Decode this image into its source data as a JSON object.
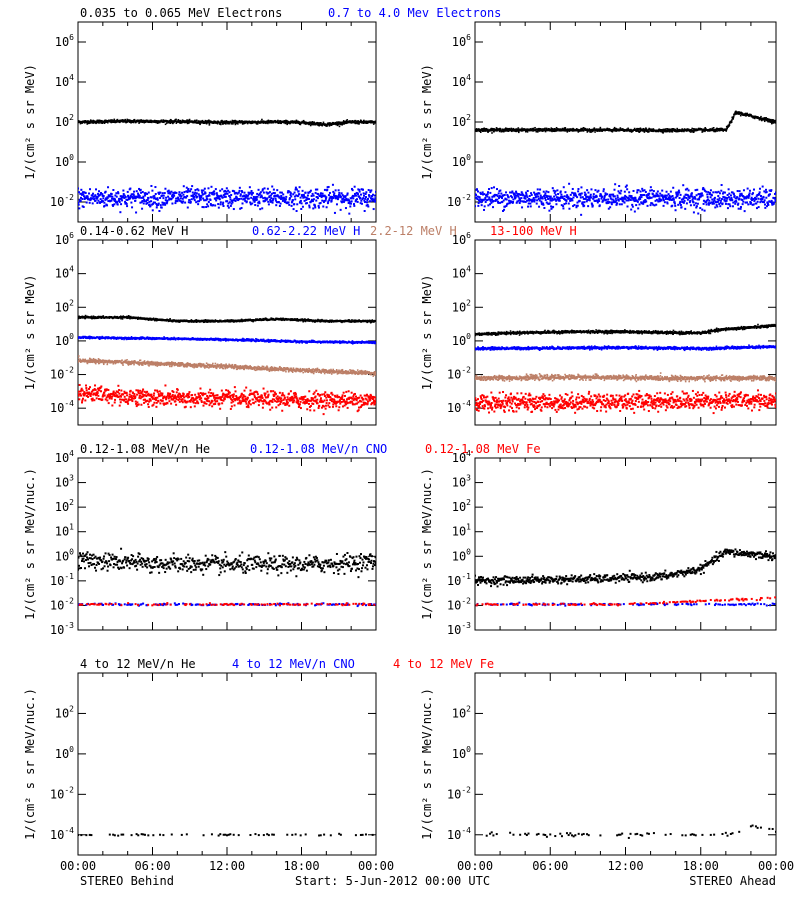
{
  "chart_data": {
    "type": "scatter",
    "x_tick_labels": [
      "00:00",
      "06:00",
      "12:00",
      "18:00",
      "00:00"
    ],
    "xlim_hours": [
      0,
      24
    ],
    "footer": {
      "left": "STEREO Behind",
      "center": "Start:  5-Jun-2012 00:00 UTC",
      "right": "STEREO Ahead"
    },
    "rows": [
      {
        "legend": [
          {
            "text": "0.035 to 0.065 MeV Electrons",
            "color": "#000000"
          },
          {
            "text": "0.7 to 4.0 Mev Electrons",
            "color": "#0000ff"
          }
        ],
        "ylabel": "1/(cm² s sr MeV)",
        "yscale": "log",
        "y_ticks": [
          "10^-2",
          "10^0",
          "10^2",
          "10^4",
          "10^6"
        ],
        "ylim_log": [
          -3,
          7
        ],
        "panels": [
          {
            "name": "STEREO Behind",
            "series": [
              {
                "color": "#000000",
                "points": [
                  [
                    0,
                    100
                  ],
                  [
                    4,
                    110
                  ],
                  [
                    8,
                    105
                  ],
                  [
                    12,
                    95
                  ],
                  [
                    16,
                    100
                  ],
                  [
                    18,
                    95
                  ],
                  [
                    20,
                    75
                  ],
                  [
                    22,
                    100
                  ],
                  [
                    24,
                    95
                  ]
                ],
                "noise": 0.04,
                "density": 4,
                "marker": "line"
              },
              {
                "color": "#0000ff",
                "points": [
                  [
                    0,
                    0.016
                  ],
                  [
                    12,
                    0.016
                  ],
                  [
                    24,
                    0.016
                  ]
                ],
                "noise": 0.25,
                "density": 3,
                "marker": "dot"
              }
            ]
          },
          {
            "name": "STEREO Ahead",
            "series": [
              {
                "color": "#000000",
                "points": [
                  [
                    0,
                    40
                  ],
                  [
                    10,
                    40
                  ],
                  [
                    15,
                    38
                  ],
                  [
                    20,
                    40
                  ],
                  [
                    20.2,
                    60
                  ],
                  [
                    20.8,
                    300
                  ],
                  [
                    22,
                    200
                  ],
                  [
                    24,
                    100
                  ]
                ],
                "noise": 0.04,
                "density": 4,
                "marker": "line"
              },
              {
                "color": "#0000ff",
                "points": [
                  [
                    0,
                    0.016
                  ],
                  [
                    12,
                    0.016
                  ],
                  [
                    24,
                    0.014
                  ]
                ],
                "noise": 0.25,
                "density": 3,
                "marker": "dot"
              }
            ]
          }
        ]
      },
      {
        "legend": [
          {
            "text": "0.14-0.62 MeV H",
            "color": "#000000"
          },
          {
            "text": "0.62-2.22 MeV H",
            "color": "#0000ff"
          },
          {
            "text": "2.2-12 MeV H",
            "color": "#bc7f67"
          },
          {
            "text": "13-100 MeV H",
            "color": "#ff0000"
          }
        ],
        "ylabel": "1/(cm² s sr MeV)",
        "yscale": "log",
        "y_ticks": [
          "10^-4",
          "10^-2",
          "10^0",
          "10^2",
          "10^4",
          "10^6"
        ],
        "ylim_log": [
          -5,
          6
        ],
        "panels": [
          {
            "name": "STEREO Behind",
            "series": [
              {
                "color": "#000000",
                "points": [
                  [
                    0,
                    25
                  ],
                  [
                    4,
                    25
                  ],
                  [
                    8,
                    15
                  ],
                  [
                    12,
                    15
                  ],
                  [
                    16,
                    20
                  ],
                  [
                    20,
                    15
                  ],
                  [
                    24,
                    15
                  ]
                ],
                "noise": 0.03,
                "density": 4,
                "marker": "line"
              },
              {
                "color": "#0000ff",
                "points": [
                  [
                    0,
                    1.6
                  ],
                  [
                    6,
                    1.4
                  ],
                  [
                    12,
                    1.2
                  ],
                  [
                    18,
                    0.9
                  ],
                  [
                    24,
                    0.8
                  ]
                ],
                "noise": 0.03,
                "density": 4,
                "marker": "line"
              },
              {
                "color": "#bc7f67",
                "points": [
                  [
                    0,
                    0.07
                  ],
                  [
                    6,
                    0.045
                  ],
                  [
                    12,
                    0.03
                  ],
                  [
                    18,
                    0.018
                  ],
                  [
                    24,
                    0.012
                  ]
                ],
                "noise": 0.06,
                "density": 4,
                "marker": "line"
              },
              {
                "color": "#ff0000",
                "points": [
                  [
                    0,
                    0.0008
                  ],
                  [
                    6,
                    0.0004
                  ],
                  [
                    12,
                    0.00035
                  ],
                  [
                    18,
                    0.0003
                  ],
                  [
                    24,
                    0.0003
                  ]
                ],
                "noise": 0.25,
                "density": 3,
                "marker": "dot"
              }
            ]
          },
          {
            "name": "STEREO Ahead",
            "series": [
              {
                "color": "#000000",
                "points": [
                  [
                    0,
                    2.5
                  ],
                  [
                    3,
                    3
                  ],
                  [
                    8,
                    3.5
                  ],
                  [
                    12,
                    3.5
                  ],
                  [
                    16,
                    3
                  ],
                  [
                    18,
                    3
                  ],
                  [
                    20,
                    5
                  ],
                  [
                    24,
                    8
                  ]
                ],
                "noise": 0.04,
                "density": 4,
                "marker": "line"
              },
              {
                "color": "#0000ff",
                "points": [
                  [
                    0,
                    0.35
                  ],
                  [
                    12,
                    0.4
                  ],
                  [
                    18,
                    0.35
                  ],
                  [
                    24,
                    0.45
                  ]
                ],
                "noise": 0.04,
                "density": 4,
                "marker": "line"
              },
              {
                "color": "#bc7f67",
                "points": [
                  [
                    0,
                    0.006
                  ],
                  [
                    8,
                    0.007
                  ],
                  [
                    16,
                    0.006
                  ],
                  [
                    24,
                    0.006
                  ]
                ],
                "noise": 0.07,
                "density": 4,
                "marker": "line"
              },
              {
                "color": "#ff0000",
                "points": [
                  [
                    0,
                    0.0002
                  ],
                  [
                    12,
                    0.00025
                  ],
                  [
                    24,
                    0.0003
                  ]
                ],
                "noise": 0.25,
                "density": 3,
                "marker": "dot"
              }
            ]
          }
        ]
      },
      {
        "legend": [
          {
            "text": "0.12-1.08 MeV/n He",
            "color": "#000000"
          },
          {
            "text": "0.12-1.08 MeV/n CNO",
            "color": "#0000ff"
          },
          {
            "text": "0.12-1.08 MeV Fe",
            "color": "#ff0000"
          }
        ],
        "ylabel": "1/(cm² s sr MeV/nuc.)",
        "yscale": "log",
        "y_ticks": [
          "10^-3",
          "10^-2",
          "10^-1",
          "10^0",
          "10^1",
          "10^2",
          "10^3",
          "10^4"
        ],
        "ylim_log": [
          -3,
          4
        ],
        "panels": [
          {
            "name": "STEREO Behind",
            "series": [
              {
                "color": "#000000",
                "points": [
                  [
                    0,
                    0.7
                  ],
                  [
                    6,
                    0.5
                  ],
                  [
                    12,
                    0.45
                  ],
                  [
                    18,
                    0.45
                  ],
                  [
                    24,
                    0.6
                  ]
                ],
                "noise": 0.18,
                "density": 2,
                "marker": "dot"
              },
              {
                "color": "#0000ff",
                "points": [
                  [
                    0,
                    0.011
                  ],
                  [
                    12,
                    0.011
                  ],
                  [
                    24,
                    0.011
                  ]
                ],
                "noise": 0.02,
                "density": 1.2,
                "marker": "dot",
                "sparse": true
              },
              {
                "color": "#ff0000",
                "points": [
                  [
                    0,
                    0.011
                  ],
                  [
                    12,
                    0.011
                  ],
                  [
                    24,
                    0.011
                  ]
                ],
                "noise": 0.02,
                "density": 1.2,
                "marker": "dot",
                "sparse": true
              }
            ]
          },
          {
            "name": "STEREO Ahead",
            "series": [
              {
                "color": "#000000",
                "points": [
                  [
                    0,
                    0.1
                  ],
                  [
                    10,
                    0.12
                  ],
                  [
                    15,
                    0.15
                  ],
                  [
                    18,
                    0.3
                  ],
                  [
                    20,
                    1.5
                  ],
                  [
                    24,
                    1.0
                  ]
                ],
                "noise": 0.08,
                "density": 2,
                "marker": "dot"
              },
              {
                "color": "#0000ff",
                "points": [
                  [
                    0,
                    0.011
                  ],
                  [
                    12,
                    0.011
                  ],
                  [
                    24,
                    0.011
                  ]
                ],
                "noise": 0.02,
                "density": 1.2,
                "marker": "dot",
                "sparse": true
              },
              {
                "color": "#ff0000",
                "points": [
                  [
                    0,
                    0.011
                  ],
                  [
                    12,
                    0.011
                  ],
                  [
                    24,
                    0.02
                  ]
                ],
                "noise": 0.02,
                "density": 1.2,
                "marker": "dot",
                "sparse": true
              }
            ]
          }
        ]
      },
      {
        "legend": [
          {
            "text": "4 to 12 MeV/n He",
            "color": "#000000"
          },
          {
            "text": "4 to 12 MeV/n CNO",
            "color": "#0000ff"
          },
          {
            "text": "4 to 12 MeV Fe",
            "color": "#ff0000"
          }
        ],
        "ylabel": "1/(cm² s sr MeV/nuc.)",
        "yscale": "log",
        "y_ticks": [
          "10^-4",
          "10^-2",
          "10^0",
          "10^2"
        ],
        "ylim_log": [
          -5,
          4
        ],
        "panels": [
          {
            "name": "STEREO Behind",
            "series": [
              {
                "color": "#000000",
                "points": [
                  [
                    0,
                    0.0001
                  ],
                  [
                    12,
                    0.0001
                  ],
                  [
                    24,
                    0.0001
                  ]
                ],
                "noise": 0.02,
                "density": 0.6,
                "marker": "dot",
                "sparse": true
              }
            ]
          },
          {
            "name": "STEREO Ahead",
            "series": [
              {
                "color": "#000000",
                "points": [
                  [
                    0,
                    0.0001
                  ],
                  [
                    20,
                    0.0001
                  ],
                  [
                    22,
                    0.00025
                  ],
                  [
                    24,
                    0.00015
                  ]
                ],
                "noise": 0.05,
                "density": 0.6,
                "marker": "dot",
                "sparse": true
              }
            ]
          }
        ]
      }
    ]
  }
}
